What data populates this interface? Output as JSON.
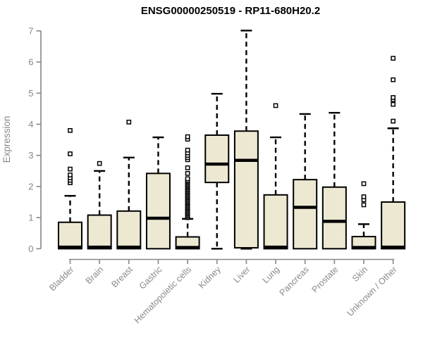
{
  "chart_data": {
    "type": "boxplot",
    "title": "ENSG00000250519 - RP11-680H20.2",
    "ylabel": "Expression",
    "xlabel": "",
    "ylim": [
      0,
      7
    ],
    "yticks": [
      0,
      1,
      2,
      3,
      4,
      5,
      6,
      7
    ],
    "grid": false,
    "legend": "none",
    "box_fill": "#EDE8D1",
    "box_stroke": "#000000",
    "median_color": "#000000",
    "outlier_stroke": "#000000",
    "axis_color": "#878787",
    "label_color": "#8A8A8A",
    "categories": [
      "Bladder",
      "Brain",
      "Breast",
      "Gastric",
      "Hematopoietic cells",
      "Kidney",
      "Liver",
      "Lung",
      "Pancreas",
      "Prostate",
      "Skin",
      "Unknown / Other"
    ],
    "series": [
      {
        "category": "Bladder",
        "whisker_low": 0,
        "q1": 0,
        "median": 0.05,
        "q3": 0.85,
        "whisker_high": 1.7,
        "outliers": [
          2.12,
          2.2,
          2.28,
          2.37,
          2.56,
          3.05,
          3.8
        ]
      },
      {
        "category": "Brain",
        "whisker_low": 0,
        "q1": 0,
        "median": 0.05,
        "q3": 1.08,
        "whisker_high": 2.5,
        "outliers": [
          2.74
        ]
      },
      {
        "category": "Breast",
        "whisker_low": 0,
        "q1": 0,
        "median": 0.05,
        "q3": 1.21,
        "whisker_high": 2.93,
        "outliers": [
          4.07
        ]
      },
      {
        "category": "Gastric",
        "whisker_low": 0,
        "q1": 0,
        "median": 0.98,
        "q3": 2.42,
        "whisker_high": 3.58,
        "outliers": []
      },
      {
        "category": "Hematopoietic cells",
        "whisker_low": 0,
        "q1": 0,
        "median": 0.04,
        "q3": 0.38,
        "whisker_high": 0.96,
        "outliers": [
          1.0,
          1.04,
          1.08,
          1.12,
          1.16,
          1.2,
          1.24,
          1.28,
          1.32,
          1.36,
          1.4,
          1.44,
          1.48,
          1.52,
          1.56,
          1.6,
          1.64,
          1.68,
          1.72,
          1.76,
          1.8,
          1.84,
          1.88,
          1.92,
          1.96,
          2.0,
          2.04,
          2.08,
          2.12,
          2.16,
          2.2,
          2.25,
          2.42,
          2.6,
          2.86,
          2.93,
          3.0,
          3.08,
          3.17,
          3.52,
          3.6
        ]
      },
      {
        "category": "Kidney",
        "whisker_low": 0,
        "q1": 2.13,
        "median": 2.72,
        "q3": 3.65,
        "whisker_high": 4.98,
        "outliers": []
      },
      {
        "category": "Liver",
        "whisker_low": 0,
        "q1": 0.03,
        "median": 2.84,
        "q3": 3.78,
        "whisker_high": 7.01,
        "outliers": []
      },
      {
        "category": "Lung",
        "whisker_low": 0,
        "q1": 0,
        "median": 0.05,
        "q3": 1.73,
        "whisker_high": 3.58,
        "outliers": [
          4.6
        ]
      },
      {
        "category": "Pancreas",
        "whisker_low": 0,
        "q1": 0,
        "median": 1.33,
        "q3": 2.22,
        "whisker_high": 4.33,
        "outliers": []
      },
      {
        "category": "Prostate",
        "whisker_low": 0,
        "q1": 0,
        "median": 0.88,
        "q3": 1.98,
        "whisker_high": 4.37,
        "outliers": []
      },
      {
        "category": "Skin",
        "whisker_low": 0,
        "q1": 0,
        "median": 0.04,
        "q3": 0.39,
        "whisker_high": 0.79,
        "outliers": [
          1.41,
          1.57,
          1.67,
          2.09
        ]
      },
      {
        "category": "Unknown / Other",
        "whisker_low": 0,
        "q1": 0,
        "median": 0.05,
        "q3": 1.5,
        "whisker_high": 3.87,
        "outliers": [
          4.1,
          4.64,
          4.79,
          4.86,
          5.43,
          6.12
        ]
      }
    ]
  }
}
